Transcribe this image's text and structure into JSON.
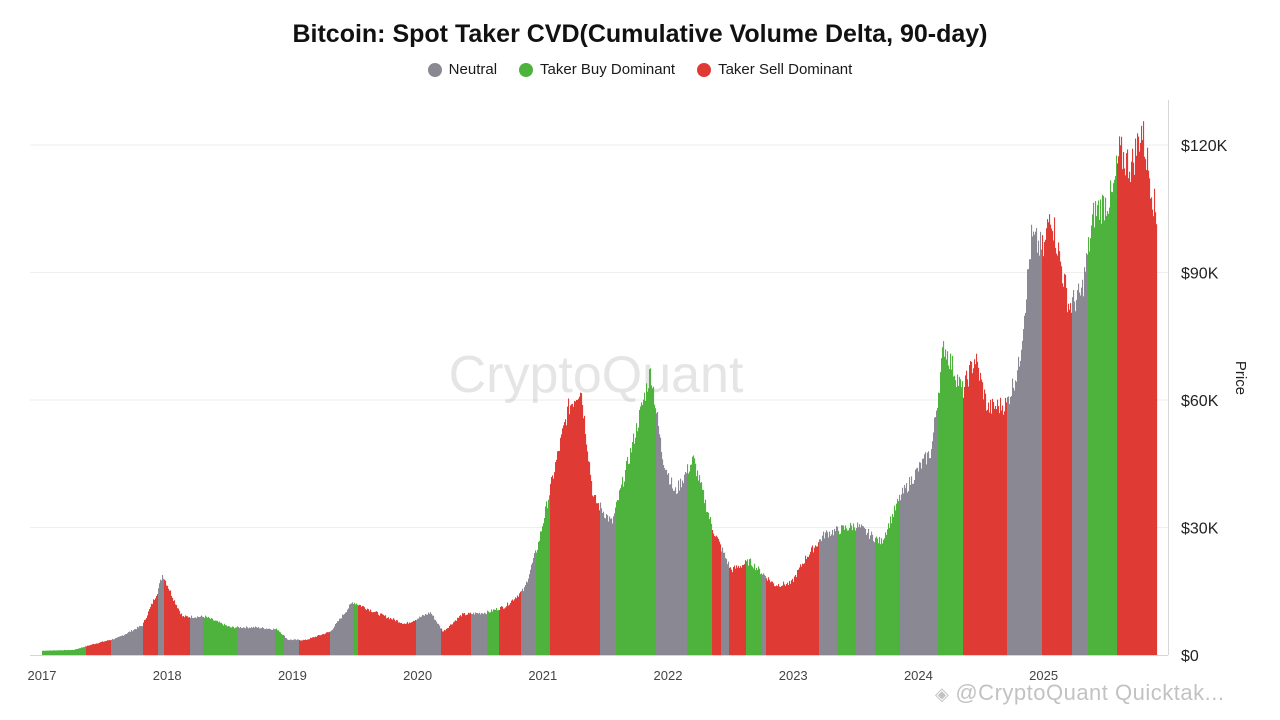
{
  "chart_data": {
    "type": "bar",
    "title": "Bitcoin: Spot Taker CVD(Cumulative Volume Delta, 90-day)",
    "ylabel": "Price",
    "xlabel": "",
    "ylim": [
      0,
      130000
    ],
    "y_ticks": [
      0,
      30000,
      60000,
      90000,
      120000
    ],
    "y_tick_labels": [
      "$0",
      "$30K",
      "$60K",
      "$90K",
      "$120K"
    ],
    "x_tick_labels": [
      "2017",
      "2018",
      "2019",
      "2020",
      "2021",
      "2022",
      "2023",
      "2024",
      "2025"
    ],
    "x_range_years": [
      2017.0,
      2025.9
    ],
    "legend_position": "top-center",
    "grid": true,
    "legend": [
      {
        "key": "neutral",
        "label": "Neutral",
        "color": "#8a8893"
      },
      {
        "key": "buy",
        "label": "Taker Buy Dominant",
        "color": "#4db33d"
      },
      {
        "key": "sell",
        "label": "Taker Sell Dominant",
        "color": "#e03a34"
      }
    ],
    "price_series": [
      {
        "t": 2017.0,
        "v": 1000
      },
      {
        "t": 2017.25,
        "v": 1200
      },
      {
        "t": 2017.4,
        "v": 2500
      },
      {
        "t": 2017.6,
        "v": 4000
      },
      {
        "t": 2017.8,
        "v": 7000
      },
      {
        "t": 2017.92,
        "v": 15000
      },
      {
        "t": 2017.96,
        "v": 19000
      },
      {
        "t": 2018.05,
        "v": 13000
      },
      {
        "t": 2018.12,
        "v": 9000
      },
      {
        "t": 2018.3,
        "v": 9000
      },
      {
        "t": 2018.5,
        "v": 6500
      },
      {
        "t": 2018.7,
        "v": 6500
      },
      {
        "t": 2018.88,
        "v": 6000
      },
      {
        "t": 2018.96,
        "v": 3600
      },
      {
        "t": 2019.1,
        "v": 3500
      },
      {
        "t": 2019.3,
        "v": 5500
      },
      {
        "t": 2019.48,
        "v": 12500
      },
      {
        "t": 2019.7,
        "v": 9500
      },
      {
        "t": 2019.9,
        "v": 7300
      },
      {
        "t": 2020.1,
        "v": 10000
      },
      {
        "t": 2020.2,
        "v": 5500
      },
      {
        "t": 2020.35,
        "v": 9500
      },
      {
        "t": 2020.55,
        "v": 10000
      },
      {
        "t": 2020.7,
        "v": 11500
      },
      {
        "t": 2020.85,
        "v": 15500
      },
      {
        "t": 2020.96,
        "v": 26000
      },
      {
        "t": 2021.1,
        "v": 45000
      },
      {
        "t": 2021.2,
        "v": 58000
      },
      {
        "t": 2021.3,
        "v": 63000
      },
      {
        "t": 2021.4,
        "v": 37000
      },
      {
        "t": 2021.55,
        "v": 31000
      },
      {
        "t": 2021.7,
        "v": 48000
      },
      {
        "t": 2021.86,
        "v": 67000
      },
      {
        "t": 2021.95,
        "v": 47000
      },
      {
        "t": 2022.05,
        "v": 38000
      },
      {
        "t": 2022.2,
        "v": 46000
      },
      {
        "t": 2022.35,
        "v": 30000
      },
      {
        "t": 2022.5,
        "v": 20000
      },
      {
        "t": 2022.65,
        "v": 22000
      },
      {
        "t": 2022.85,
        "v": 16500
      },
      {
        "t": 2022.98,
        "v": 16800
      },
      {
        "t": 2023.1,
        "v": 23000
      },
      {
        "t": 2023.25,
        "v": 28500
      },
      {
        "t": 2023.5,
        "v": 30500
      },
      {
        "t": 2023.7,
        "v": 26500
      },
      {
        "t": 2023.85,
        "v": 37000
      },
      {
        "t": 2023.98,
        "v": 43000
      },
      {
        "t": 2024.1,
        "v": 48000
      },
      {
        "t": 2024.2,
        "v": 73000
      },
      {
        "t": 2024.35,
        "v": 62000
      },
      {
        "t": 2024.45,
        "v": 70000
      },
      {
        "t": 2024.55,
        "v": 58000
      },
      {
        "t": 2024.7,
        "v": 59000
      },
      {
        "t": 2024.8,
        "v": 68000
      },
      {
        "t": 2024.9,
        "v": 98000
      },
      {
        "t": 2025.0,
        "v": 95000
      },
      {
        "t": 2025.05,
        "v": 105000
      },
      {
        "t": 2025.2,
        "v": 82000
      },
      {
        "t": 2025.3,
        "v": 85000
      },
      {
        "t": 2025.4,
        "v": 104000
      },
      {
        "t": 2025.55,
        "v": 108000
      },
      {
        "t": 2025.6,
        "v": 118000
      },
      {
        "t": 2025.7,
        "v": 115000
      },
      {
        "t": 2025.78,
        "v": 124000
      },
      {
        "t": 2025.86,
        "v": 110000
      },
      {
        "t": 2025.9,
        "v": 102000
      }
    ],
    "regimes": [
      {
        "start": 2017.0,
        "end": 2017.35,
        "state": "buy"
      },
      {
        "start": 2017.35,
        "end": 2017.55,
        "state": "sell"
      },
      {
        "start": 2017.55,
        "end": 2017.8,
        "state": "neutral"
      },
      {
        "start": 2017.8,
        "end": 2017.92,
        "state": "sell"
      },
      {
        "start": 2017.92,
        "end": 2017.97,
        "state": "neutral"
      },
      {
        "start": 2017.97,
        "end": 2018.18,
        "state": "sell"
      },
      {
        "start": 2018.18,
        "end": 2018.28,
        "state": "neutral"
      },
      {
        "start": 2018.28,
        "end": 2018.55,
        "state": "buy"
      },
      {
        "start": 2018.55,
        "end": 2018.86,
        "state": "neutral"
      },
      {
        "start": 2018.86,
        "end": 2018.93,
        "state": "buy"
      },
      {
        "start": 2018.93,
        "end": 2019.05,
        "state": "neutral"
      },
      {
        "start": 2019.05,
        "end": 2019.3,
        "state": "sell"
      },
      {
        "start": 2019.3,
        "end": 2019.48,
        "state": "neutral"
      },
      {
        "start": 2019.48,
        "end": 2019.52,
        "state": "buy"
      },
      {
        "start": 2019.52,
        "end": 2019.98,
        "state": "sell"
      },
      {
        "start": 2019.98,
        "end": 2020.18,
        "state": "neutral"
      },
      {
        "start": 2020.18,
        "end": 2020.42,
        "state": "sell"
      },
      {
        "start": 2020.42,
        "end": 2020.55,
        "state": "neutral"
      },
      {
        "start": 2020.55,
        "end": 2020.65,
        "state": "buy"
      },
      {
        "start": 2020.65,
        "end": 2020.82,
        "state": "sell"
      },
      {
        "start": 2020.82,
        "end": 2020.94,
        "state": "neutral"
      },
      {
        "start": 2020.94,
        "end": 2021.05,
        "state": "buy"
      },
      {
        "start": 2021.05,
        "end": 2021.45,
        "state": "sell"
      },
      {
        "start": 2021.45,
        "end": 2021.58,
        "state": "neutral"
      },
      {
        "start": 2021.58,
        "end": 2021.9,
        "state": "buy"
      },
      {
        "start": 2021.9,
        "end": 2022.15,
        "state": "neutral"
      },
      {
        "start": 2022.15,
        "end": 2022.35,
        "state": "buy"
      },
      {
        "start": 2022.35,
        "end": 2022.42,
        "state": "sell"
      },
      {
        "start": 2022.42,
        "end": 2022.48,
        "state": "neutral"
      },
      {
        "start": 2022.48,
        "end": 2022.62,
        "state": "sell"
      },
      {
        "start": 2022.62,
        "end": 2022.75,
        "state": "buy"
      },
      {
        "start": 2022.75,
        "end": 2022.78,
        "state": "neutral"
      },
      {
        "start": 2022.78,
        "end": 2023.2,
        "state": "sell"
      },
      {
        "start": 2023.2,
        "end": 2023.35,
        "state": "neutral"
      },
      {
        "start": 2023.35,
        "end": 2023.5,
        "state": "buy"
      },
      {
        "start": 2023.5,
        "end": 2023.65,
        "state": "neutral"
      },
      {
        "start": 2023.65,
        "end": 2023.85,
        "state": "buy"
      },
      {
        "start": 2023.85,
        "end": 2024.15,
        "state": "neutral"
      },
      {
        "start": 2024.15,
        "end": 2024.35,
        "state": "buy"
      },
      {
        "start": 2024.35,
        "end": 2024.7,
        "state": "sell"
      },
      {
        "start": 2024.7,
        "end": 2024.98,
        "state": "neutral"
      },
      {
        "start": 2024.98,
        "end": 2025.22,
        "state": "sell"
      },
      {
        "start": 2025.22,
        "end": 2025.35,
        "state": "neutral"
      },
      {
        "start": 2025.35,
        "end": 2025.58,
        "state": "buy"
      },
      {
        "start": 2025.58,
        "end": 2025.9,
        "state": "sell"
      }
    ]
  },
  "watermark": {
    "center": "CryptoQuant",
    "footer": "@CryptoQuant Quicktak...",
    "footer_icon": "crypto-quant-logo"
  }
}
